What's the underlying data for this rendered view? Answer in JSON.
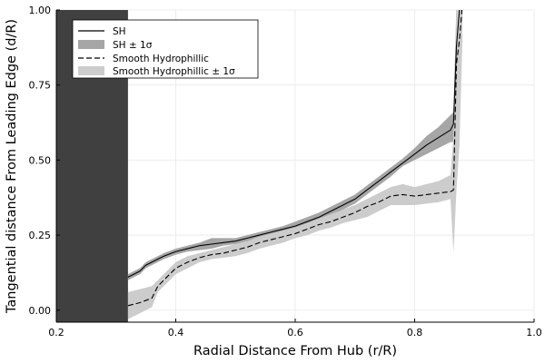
{
  "chart_data": {
    "type": "line",
    "title": "",
    "xlabel": "Radial Distance From Hub (r/R)",
    "ylabel": "Tangential distance From Leading Edge (d/R)",
    "xlim": [
      0.2,
      1.0
    ],
    "ylim": [
      -0.04,
      1.0
    ],
    "xticks": [
      0.2,
      0.4,
      0.6,
      0.8,
      1.0
    ],
    "xtick_labels": [
      "0.2",
      "0.4",
      "0.6",
      "0.8",
      "1.0"
    ],
    "yticks": [
      0.0,
      0.25,
      0.5,
      0.75,
      1.0
    ],
    "ytick_labels": [
      "0.00",
      "0.25",
      "0.50",
      "0.75",
      "1.00"
    ],
    "grid": true,
    "legend_position": "top-left",
    "colors": {
      "sh_line": "#000000",
      "sh_band": "#a6a6a6",
      "smooth_line": "#000000",
      "smooth_band": "#cccccc",
      "hub_region": "#404040",
      "grid": "#e9e9e9"
    },
    "hub_region": {
      "x_from": 0.2,
      "x_to": 0.32
    },
    "legend": [
      {
        "label": "SH",
        "style": "solid-line"
      },
      {
        "label": "SH ± 1σ",
        "style": "band-dark"
      },
      {
        "label": "Smooth Hydrophillic",
        "style": "dashed-line"
      },
      {
        "label": "Smooth Hydrophillic ± 1σ",
        "style": "band-light"
      }
    ],
    "series": [
      {
        "name": "SH",
        "style": "solid",
        "x": [
          0.32,
          0.33,
          0.34,
          0.35,
          0.36,
          0.37,
          0.38,
          0.4,
          0.42,
          0.44,
          0.46,
          0.48,
          0.5,
          0.52,
          0.54,
          0.56,
          0.58,
          0.6,
          0.62,
          0.64,
          0.66,
          0.68,
          0.7,
          0.72,
          0.74,
          0.76,
          0.78,
          0.8,
          0.82,
          0.84,
          0.86,
          0.865,
          0.87,
          0.875,
          0.88
        ],
        "y": [
          0.11,
          0.12,
          0.13,
          0.15,
          0.16,
          0.17,
          0.18,
          0.195,
          0.205,
          0.215,
          0.22,
          0.225,
          0.23,
          0.24,
          0.25,
          0.26,
          0.27,
          0.28,
          0.295,
          0.31,
          0.33,
          0.35,
          0.37,
          0.4,
          0.43,
          0.46,
          0.49,
          0.52,
          0.55,
          0.575,
          0.6,
          0.62,
          0.88,
          1.0,
          1.02
        ]
      },
      {
        "name": "SH ± 1σ",
        "style": "band",
        "x": [
          0.32,
          0.33,
          0.34,
          0.35,
          0.36,
          0.37,
          0.38,
          0.4,
          0.42,
          0.44,
          0.46,
          0.48,
          0.5,
          0.52,
          0.54,
          0.56,
          0.58,
          0.6,
          0.62,
          0.64,
          0.66,
          0.68,
          0.7,
          0.72,
          0.74,
          0.76,
          0.78,
          0.8,
          0.82,
          0.84,
          0.86,
          0.865,
          0.87,
          0.875,
          0.88
        ],
        "lower": [
          0.1,
          0.11,
          0.12,
          0.14,
          0.15,
          0.16,
          0.17,
          0.185,
          0.195,
          0.2,
          0.205,
          0.215,
          0.22,
          0.23,
          0.24,
          0.25,
          0.26,
          0.27,
          0.285,
          0.3,
          0.315,
          0.335,
          0.355,
          0.385,
          0.415,
          0.445,
          0.48,
          0.5,
          0.52,
          0.54,
          0.56,
          0.56,
          0.78,
          0.88,
          0.95
        ],
        "upper": [
          0.12,
          0.13,
          0.14,
          0.16,
          0.17,
          0.18,
          0.19,
          0.205,
          0.215,
          0.225,
          0.24,
          0.24,
          0.24,
          0.25,
          0.26,
          0.27,
          0.28,
          0.295,
          0.31,
          0.325,
          0.345,
          0.365,
          0.385,
          0.415,
          0.445,
          0.475,
          0.505,
          0.54,
          0.58,
          0.61,
          0.65,
          0.66,
          1.02,
          1.03,
          1.03
        ]
      },
      {
        "name": "Smooth Hydrophillic",
        "style": "dashed",
        "x": [
          0.32,
          0.34,
          0.36,
          0.37,
          0.38,
          0.39,
          0.4,
          0.42,
          0.44,
          0.46,
          0.48,
          0.5,
          0.52,
          0.54,
          0.56,
          0.58,
          0.6,
          0.62,
          0.64,
          0.66,
          0.68,
          0.7,
          0.72,
          0.74,
          0.76,
          0.78,
          0.8,
          0.82,
          0.84,
          0.86,
          0.865,
          0.87,
          0.875,
          0.88
        ],
        "y": [
          0.015,
          0.025,
          0.04,
          0.08,
          0.1,
          0.12,
          0.14,
          0.16,
          0.175,
          0.185,
          0.19,
          0.2,
          0.21,
          0.225,
          0.235,
          0.245,
          0.255,
          0.27,
          0.285,
          0.295,
          0.31,
          0.325,
          0.345,
          0.36,
          0.38,
          0.385,
          0.38,
          0.385,
          0.39,
          0.395,
          0.4,
          0.82,
          0.9,
          1.02
        ]
      },
      {
        "name": "Smooth Hydrophillic ± 1σ",
        "style": "band",
        "x": [
          0.32,
          0.34,
          0.36,
          0.37,
          0.38,
          0.39,
          0.4,
          0.42,
          0.44,
          0.46,
          0.48,
          0.5,
          0.52,
          0.54,
          0.56,
          0.58,
          0.6,
          0.62,
          0.64,
          0.66,
          0.68,
          0.7,
          0.72,
          0.74,
          0.76,
          0.78,
          0.8,
          0.82,
          0.84,
          0.86,
          0.865,
          0.87,
          0.875,
          0.88
        ],
        "lower": [
          -0.03,
          -0.01,
          0.01,
          0.06,
          0.08,
          0.1,
          0.12,
          0.14,
          0.16,
          0.17,
          0.175,
          0.18,
          0.19,
          0.205,
          0.215,
          0.225,
          0.24,
          0.25,
          0.265,
          0.275,
          0.29,
          0.3,
          0.31,
          0.33,
          0.35,
          0.35,
          0.35,
          0.355,
          0.36,
          0.37,
          0.19,
          0.4,
          0.55,
          0.9
        ],
        "upper": [
          0.06,
          0.07,
          0.08,
          0.1,
          0.12,
          0.14,
          0.16,
          0.18,
          0.19,
          0.2,
          0.21,
          0.22,
          0.23,
          0.245,
          0.255,
          0.265,
          0.275,
          0.29,
          0.305,
          0.32,
          0.335,
          0.35,
          0.37,
          0.39,
          0.41,
          0.42,
          0.41,
          0.42,
          0.43,
          0.45,
          0.58,
          1.02,
          1.03,
          1.03
        ]
      }
    ]
  }
}
